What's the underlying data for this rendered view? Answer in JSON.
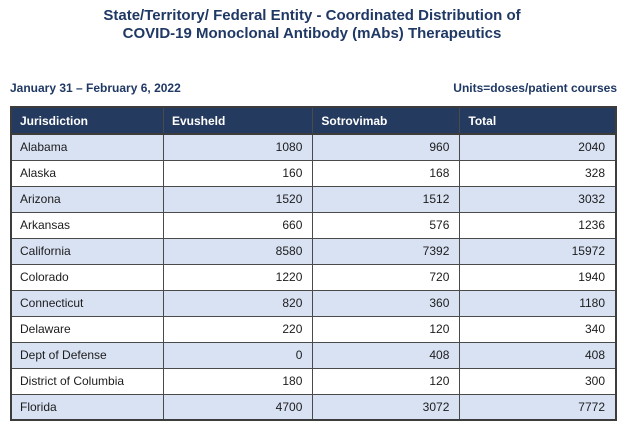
{
  "title": {
    "line1": "State/Territory/ Federal Entity - Coordinated Distribution of",
    "line2": "COVID-19 Monoclonal Antibody (mAbs) Therapeutics"
  },
  "subheader": {
    "date_range": "January 31 – February 6, 2022",
    "units_label": "Units=doses/patient courses"
  },
  "chart_data": {
    "type": "table",
    "columns": [
      "Jurisdiction",
      "Evusheld",
      "Sotrovimab",
      "Total"
    ],
    "rows": [
      {
        "jurisdiction": "Alabama",
        "evusheld": 1080,
        "sotrovimab": 960,
        "total": 2040
      },
      {
        "jurisdiction": "Alaska",
        "evusheld": 160,
        "sotrovimab": 168,
        "total": 328
      },
      {
        "jurisdiction": "Arizona",
        "evusheld": 1520,
        "sotrovimab": 1512,
        "total": 3032
      },
      {
        "jurisdiction": "Arkansas",
        "evusheld": 660,
        "sotrovimab": 576,
        "total": 1236
      },
      {
        "jurisdiction": "California",
        "evusheld": 8580,
        "sotrovimab": 7392,
        "total": 15972
      },
      {
        "jurisdiction": "Colorado",
        "evusheld": 1220,
        "sotrovimab": 720,
        "total": 1940
      },
      {
        "jurisdiction": "Connecticut",
        "evusheld": 820,
        "sotrovimab": 360,
        "total": 1180
      },
      {
        "jurisdiction": "Delaware",
        "evusheld": 220,
        "sotrovimab": 120,
        "total": 340
      },
      {
        "jurisdiction": "Dept of Defense",
        "evusheld": 0,
        "sotrovimab": 408,
        "total": 408
      },
      {
        "jurisdiction": "District of Columbia",
        "evusheld": 180,
        "sotrovimab": 120,
        "total": 300
      },
      {
        "jurisdiction": "Florida",
        "evusheld": 4700,
        "sotrovimab": 3072,
        "total": 7772
      }
    ]
  },
  "colors": {
    "title_text": "#1F3864",
    "header_bg": "#243A5E",
    "header_text": "#FFFFFF",
    "row_alt_bg": "#D9E2F3",
    "body_text": "#1C1C1C",
    "border": "#3C3C3C"
  }
}
